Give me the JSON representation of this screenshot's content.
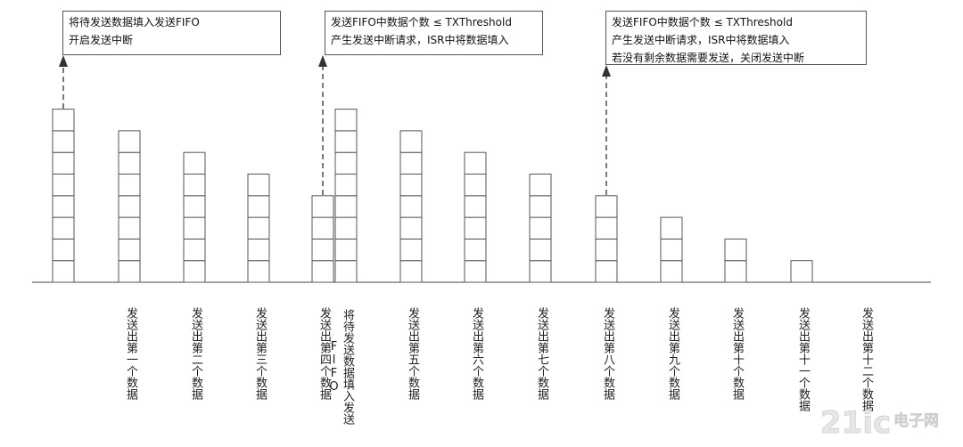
{
  "notes": [
    {
      "lines": [
        "将待发送数据填入发送FIFO",
        "开启发送中断"
      ]
    },
    {
      "lines": [
        "发送FIFO中数据个数 ≤ TXThreshold",
        "产生发送中断请求，ISR中将数据填入"
      ]
    },
    {
      "lines": [
        "发送FIFO中数据个数 ≤ TXThreshold",
        "产生发送中断请求，ISR中将数据填入",
        "若没有剩余数据需要发送，关闭发送中断"
      ]
    }
  ],
  "columns": [
    {
      "label": "",
      "count": 8
    },
    {
      "label": "发送出第一个数据",
      "count": 7
    },
    {
      "label": "发送出第二个数据",
      "count": 6
    },
    {
      "label": "发送出第三个数据",
      "count": 5
    },
    {
      "label": "发送出第四个数据",
      "count": 4
    },
    {
      "label": "将待发送数据填入发送FIFO",
      "count": 8
    },
    {
      "label": "发送出第五个数据",
      "count": 7
    },
    {
      "label": "发送出第六个数据",
      "count": 6
    },
    {
      "label": "发送出第七个数据",
      "count": 5
    },
    {
      "label": "发送出第八个数据",
      "count": 4
    },
    {
      "label": "发送出第九个数据",
      "count": 3
    },
    {
      "label": "发送出第十个数据",
      "count": 2
    },
    {
      "label": "发送出第十一个数据",
      "count": 1
    },
    {
      "label": "发送出第十二个数据",
      "count": 0
    }
  ],
  "watermark": {
    "text": "21ic电子网"
  }
}
